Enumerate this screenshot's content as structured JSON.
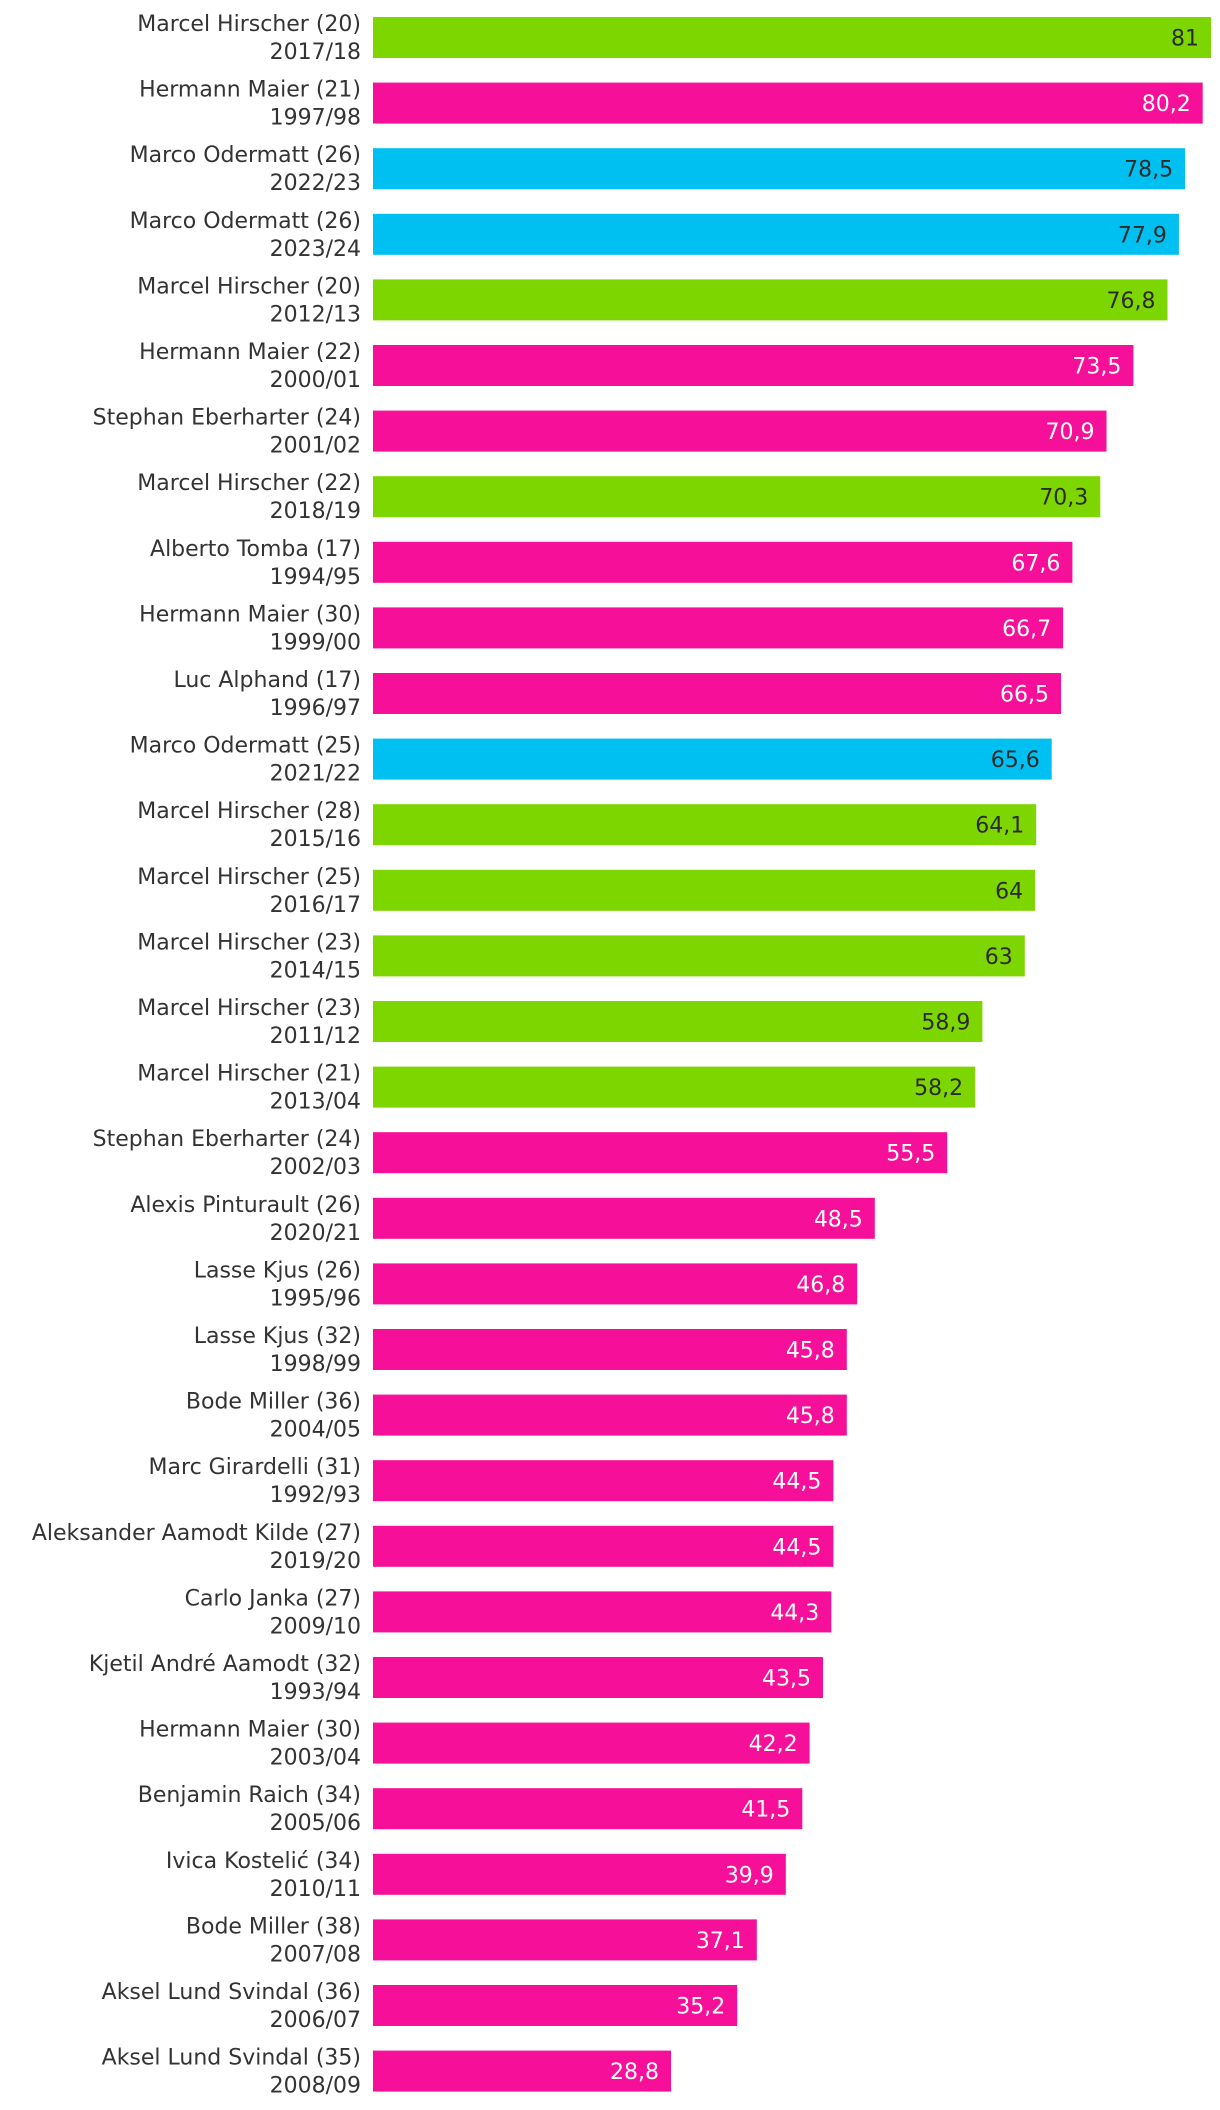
{
  "chart_data": {
    "type": "bar",
    "orientation": "horizontal",
    "xlim": [
      0,
      81
    ],
    "colors": {
      "green": "#7ed600",
      "pink": "#f50f99",
      "blue": "#00c0f2",
      "dark_text": "#2b2b2b",
      "light_text": "#ffffff"
    },
    "bars": [
      {
        "name": "Marcel Hirscher (20)",
        "season": "2017/18",
        "value": 81,
        "label": "81",
        "color": "green"
      },
      {
        "name": "Hermann Maier (21)",
        "season": "1997/98",
        "value": 80.2,
        "label": "80,2",
        "color": "pink"
      },
      {
        "name": "Marco Odermatt (26)",
        "season": "2022/23",
        "value": 78.5,
        "label": "78,5",
        "color": "blue"
      },
      {
        "name": "Marco Odermatt (26)",
        "season": "2023/24",
        "value": 77.9,
        "label": "77,9",
        "color": "blue"
      },
      {
        "name": "Marcel Hirscher (20)",
        "season": "2012/13",
        "value": 76.8,
        "label": "76,8",
        "color": "green"
      },
      {
        "name": "Hermann Maier (22)",
        "season": "2000/01",
        "value": 73.5,
        "label": "73,5",
        "color": "pink"
      },
      {
        "name": "Stephan Eberharter (24)",
        "season": "2001/02",
        "value": 70.9,
        "label": "70,9",
        "color": "pink"
      },
      {
        "name": "Marcel Hirscher (22)",
        "season": "2018/19",
        "value": 70.3,
        "label": "70,3",
        "color": "green"
      },
      {
        "name": "Alberto Tomba (17)",
        "season": "1994/95",
        "value": 67.6,
        "label": "67,6",
        "color": "pink"
      },
      {
        "name": "Hermann Maier (30)",
        "season": "1999/00",
        "value": 66.7,
        "label": "66,7",
        "color": "pink"
      },
      {
        "name": "Luc Alphand (17)",
        "season": "1996/97",
        "value": 66.5,
        "label": "66,5",
        "color": "pink"
      },
      {
        "name": "Marco Odermatt (25)",
        "season": "2021/22",
        "value": 65.6,
        "label": "65,6",
        "color": "blue"
      },
      {
        "name": "Marcel Hirscher (28)",
        "season": "2015/16",
        "value": 64.1,
        "label": "64,1",
        "color": "green"
      },
      {
        "name": "Marcel Hirscher (25)",
        "season": "2016/17",
        "value": 64,
        "label": "64",
        "color": "green"
      },
      {
        "name": "Marcel Hirscher (23)",
        "season": "2014/15",
        "value": 63,
        "label": "63",
        "color": "green"
      },
      {
        "name": "Marcel Hirscher (23)",
        "season": "2011/12",
        "value": 58.9,
        "label": "58,9",
        "color": "green"
      },
      {
        "name": "Marcel Hirscher (21)",
        "season": "2013/04",
        "value": 58.2,
        "label": "58,2",
        "color": "green"
      },
      {
        "name": "Stephan Eberharter (24)",
        "season": "2002/03",
        "value": 55.5,
        "label": "55,5",
        "color": "pink"
      },
      {
        "name": "Alexis Pinturault (26)",
        "season": "2020/21",
        "value": 48.5,
        "label": "48,5",
        "color": "pink"
      },
      {
        "name": "Lasse Kjus (26)",
        "season": "1995/96",
        "value": 46.8,
        "label": "46,8",
        "color": "pink"
      },
      {
        "name": "Lasse Kjus (32)",
        "season": "1998/99",
        "value": 45.8,
        "label": "45,8",
        "color": "pink"
      },
      {
        "name": "Bode Miller (36)",
        "season": "2004/05",
        "value": 45.8,
        "label": "45,8",
        "color": "pink"
      },
      {
        "name": "Marc Girardelli (31)",
        "season": "1992/93",
        "value": 44.5,
        "label": "44,5",
        "color": "pink"
      },
      {
        "name": "Aleksander Aamodt Kilde (27)",
        "season": "2019/20",
        "value": 44.5,
        "label": "44,5",
        "color": "pink"
      },
      {
        "name": "Carlo Janka (27)",
        "season": "2009/10",
        "value": 44.3,
        "label": "44,3",
        "color": "pink"
      },
      {
        "name": "Kjetil André Aamodt (32)",
        "season": "1993/94",
        "value": 43.5,
        "label": "43,5",
        "color": "pink"
      },
      {
        "name": "Hermann Maier (30)",
        "season": "2003/04",
        "value": 42.2,
        "label": "42,2",
        "color": "pink"
      },
      {
        "name": "Benjamin Raich (34)",
        "season": "2005/06",
        "value": 41.5,
        "label": "41,5",
        "color": "pink"
      },
      {
        "name": "Ivica Kostelić (34)",
        "season": "2010/11",
        "value": 39.9,
        "label": "39,9",
        "color": "pink"
      },
      {
        "name": "Bode Miller (38)",
        "season": "2007/08",
        "value": 37.1,
        "label": "37,1",
        "color": "pink"
      },
      {
        "name": "Aksel Lund Svindal (36)",
        "season": "2006/07",
        "value": 35.2,
        "label": "35,2",
        "color": "pink"
      },
      {
        "name": "Aksel Lund Svindal (35)",
        "season": "2008/09",
        "value": 28.8,
        "label": "28,8",
        "color": "pink"
      }
    ]
  }
}
